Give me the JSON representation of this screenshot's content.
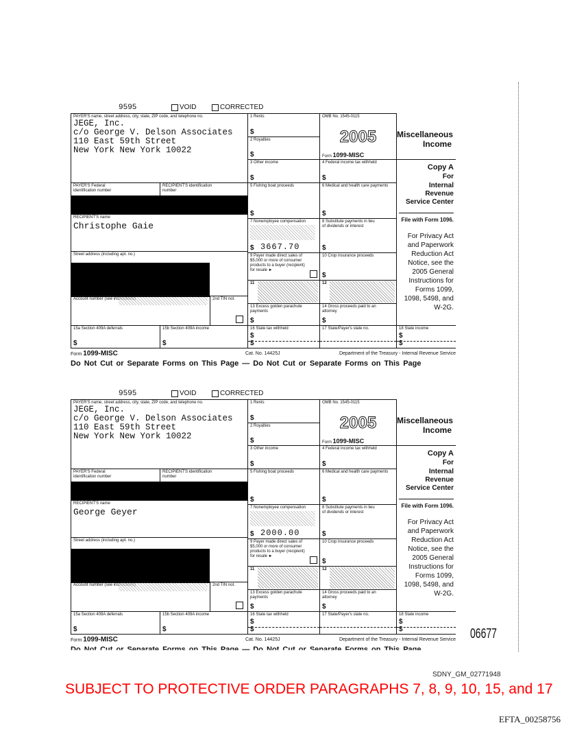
{
  "forms": [
    {
      "control_no": "9595",
      "void_label": "VOID",
      "corrected_label": "CORRECTED",
      "payer_label": "PAYER'S name, street address, city, state, ZIP code, and telephone no.",
      "payer_lines": [
        "JEGE, Inc.",
        "c/o George V. Delson Associates",
        "110 East 59th Street",
        "New York New York 10022"
      ],
      "box1": "1  Rents",
      "box2": "2  Royalties",
      "box3": "3  Other income",
      "box4": "4  Federal income tax withheld",
      "box5": "5  Fishing boat proceeds",
      "box6": "6  Medical and health care payments",
      "box7": "7  Nonemployee compensation",
      "box7_value": "3667.70",
      "box8": "8  Substitute payments in lieu of dividends or interest",
      "box9": "9  Payer made direct sales of $5,000 or more of consumer products to a buyer (recipient) for resale ►",
      "box10": "10  Crop insurance proceeds",
      "box11": "11",
      "box12": "12",
      "box13": "13  Excess golden parachute payments",
      "box14": "14  Gross proceeds paid to an attorney",
      "box15a": "15a Section 409A deferrals",
      "box15b": "15b Section 409A income",
      "box16": "16  State tax withheld",
      "box17": "17  State/Payer's state no.",
      "box18": "18  State income",
      "omb": "OMB No. 1545-0115",
      "year": "2005",
      "form_prefix": "Form",
      "form_name": "1099-MISC",
      "title1": "Miscellaneous",
      "title2": "Income",
      "copy": "Copy A",
      "copy_for": "For",
      "copy_irs": "Internal Revenue Service Center",
      "file_with": "File with Form 1096.",
      "privacy": "For Privacy Act and Paperwork Reduction Act Notice, see the 2005 General Instructions for Forms 1099, 1098, 5498, and W-2G.",
      "payer_fed_id": "PAYER'S Federal identification number",
      "recipient_id": "RECIPIENT'S identification number",
      "recipient_name_label": "RECIPIENT'S name",
      "recipient_name": "Christophe Gaie",
      "street_label": "Street address (including apt. no.)",
      "account_label": "Account number (see instructions)",
      "tin_label": "2nd TIN not.",
      "dollar": "$",
      "cat_no": "Cat. No. 14425J",
      "dept": "Department of the Treasury - Internal Revenue Service",
      "do_not_cut": "Do Not Cut or Separate Forms on This Page   —   Do Not Cut or Separate Forms on This Page"
    },
    {
      "control_no": "9595",
      "void_label": "VOID",
      "corrected_label": "CORRECTED",
      "payer_label": "PAYER'S name, street address, city, state, ZIP code, and telephone no.",
      "payer_lines": [
        "JEGE, Inc.",
        "c/o George V. Delson Associates",
        "110 East 59th Street",
        "New York New York 10022"
      ],
      "box1": "1  Rents",
      "box2": "2  Royalties",
      "box3": "3  Other income",
      "box4": "4  Federal income tax withheld",
      "box5": "5  Fishing boat proceeds",
      "box6": "6  Medical and health care payments",
      "box7": "7  Nonemployee compensation",
      "box7_value": "2000.00",
      "box8": "8  Substitute payments in lieu of dividends or interest",
      "box9": "9  Payer made direct sales of $5,000 or more of consumer products to a buyer (recipient) for resale ►",
      "box10": "10  Crop insurance proceeds",
      "box11": "11",
      "box12": "12",
      "box13": "13  Excess golden parachute payments",
      "box14": "14  Gross proceeds paid to an attorney",
      "box15a": "15a Section 409A deferrals",
      "box15b": "15b Section 409A income",
      "box16": "16  State tax withheld",
      "box17": "17  State/Payer's state no.",
      "box18": "18  State income",
      "omb": "OMB No. 1545-0115",
      "year": "2005",
      "form_prefix": "Form",
      "form_name": "1099-MISC",
      "title1": "Miscellaneous",
      "title2": "Income",
      "copy": "Copy A",
      "copy_for": "For",
      "copy_irs": "Internal Revenue Service Center",
      "file_with": "File with Form 1096.",
      "privacy": "For Privacy Act and Paperwork Reduction Act Notice, see the 2005 General Instructions for Forms 1099, 1098, 5498, and W-2G.",
      "payer_fed_id": "PAYER'S Federal identification number",
      "recipient_id": "RECIPIENT'S identification number",
      "recipient_name_label": "RECIPIENT'S name",
      "recipient_name": "George Geyer",
      "street_label": "Street address (including apt. no.)",
      "account_label": "Account number (see instructions)",
      "tin_label": "2nd TIN not.",
      "dollar": "$",
      "cat_no": "Cat. No. 14425J",
      "dept": "Department of the Treasury - Internal Revenue Service",
      "do_not_cut": "Do Not Cut or Separate Forms on This Page   —   Do Not Cut or Separate Forms on This Page"
    }
  ],
  "page_stamp": "06677",
  "bates_sdny": "SDNY_GM_02771948",
  "protective_order": "SUBJECT TO PROTECTIVE ORDER PARAGRAPHS 7, 8, 9, 10, 15, and 17",
  "efta_id": "EFTA_00258756",
  "colors": {
    "protective_order": "#ff0000"
  }
}
